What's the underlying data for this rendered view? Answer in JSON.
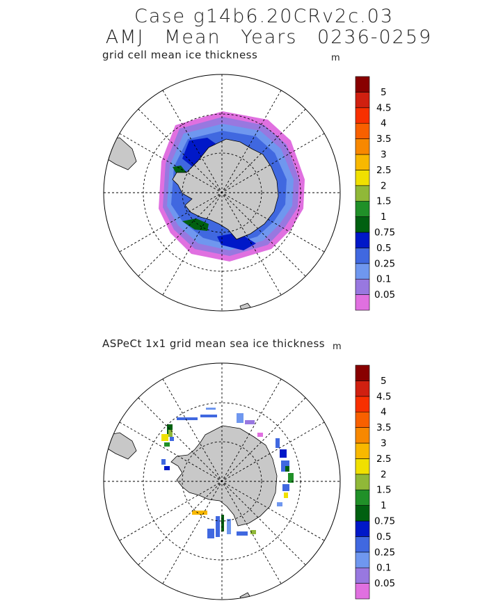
{
  "header": {
    "title_line1": "Case g14b6.20CRv2c.03",
    "title_line2": "AMJ Mean   Years 0236-0259"
  },
  "panels": [
    {
      "subtitle": "grid cell mean ice thickness",
      "unit": "m"
    },
    {
      "subtitle": "ASPeCt 1x1 grid mean sea ice thickness",
      "unit": "m"
    }
  ],
  "colorbar": {
    "labels": [
      "0.05",
      "0.1",
      "0.25",
      "0.5",
      "0.75",
      "1",
      "1.5",
      "2",
      "2.5",
      "3",
      "3.5",
      "4",
      "4.5",
      "5"
    ],
    "colors": [
      "#e070e0",
      "#9878e0",
      "#6f97ef",
      "#4068e0",
      "#0018c8",
      "#006010",
      "#209028",
      "#90b838",
      "#f0e000",
      "#f8b800",
      "#f88800",
      "#f86000",
      "#f83000",
      "#d02010",
      "#880000"
    ]
  },
  "map_colors": {
    "land": "#c8c8c8",
    "ocean": "#ffffff",
    "grid": "#000000"
  }
}
